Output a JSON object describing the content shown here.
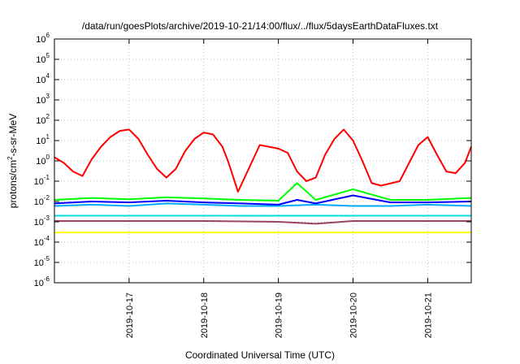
{
  "chart_data": {
    "type": "line",
    "title": "/data/run/goesPlots/archive/2019-10-21/14:00/flux/../flux/5daysEarthDataFluxes.txt",
    "xlabel": "Coordinated Universal Time (UTC)",
    "ylabel": "protons/cm²-s-sr-MeV",
    "ylabel_parts": [
      "protons/cm",
      "2",
      "-s-sr-MeV"
    ],
    "y_scale": "log",
    "ylim": [
      1e-06,
      1000000.0
    ],
    "y_ticks": [
      {
        "value": 1e-06,
        "base": "10",
        "exp": "-6"
      },
      {
        "value": 1e-05,
        "base": "10",
        "exp": "-5"
      },
      {
        "value": 0.0001,
        "base": "10",
        "exp": "-4"
      },
      {
        "value": 0.001,
        "base": "10",
        "exp": "-3"
      },
      {
        "value": 0.01,
        "base": "10",
        "exp": "-2"
      },
      {
        "value": 0.1,
        "base": "10",
        "exp": "-1"
      },
      {
        "value": 1,
        "base": "10",
        "exp": "0"
      },
      {
        "value": 10,
        "base": "10",
        "exp": "1"
      },
      {
        "value": 100,
        "base": "10",
        "exp": "2"
      },
      {
        "value": 1000,
        "base": "10",
        "exp": "3"
      },
      {
        "value": 10000,
        "base": "10",
        "exp": "4"
      },
      {
        "value": 100000,
        "base": "10",
        "exp": "5"
      },
      {
        "value": 1000000,
        "base": "10",
        "exp": "6"
      }
    ],
    "xlim": [
      "2019-10-16 00:00",
      "2019-10-21 14:00"
    ],
    "x_ticks": [
      "2019-10-17",
      "2019-10-18",
      "2019-10-19",
      "2019-10-20",
      "2019-10-21"
    ],
    "grid": true,
    "legend": "none",
    "series": [
      {
        "color": "#ff0000",
        "x": [
          "2019-10-16 00:00",
          "2019-10-16 03:00",
          "2019-10-16 06:00",
          "2019-10-16 09:00",
          "2019-10-16 12:00",
          "2019-10-16 15:00",
          "2019-10-16 18:00",
          "2019-10-16 21:00",
          "2019-10-17 00:00",
          "2019-10-17 03:00",
          "2019-10-17 06:00",
          "2019-10-17 09:00",
          "2019-10-17 12:00",
          "2019-10-17 15:00",
          "2019-10-17 18:00",
          "2019-10-17 21:00",
          "2019-10-18 00:00",
          "2019-10-18 03:00",
          "2019-10-18 06:00",
          "2019-10-18 08:00",
          "2019-10-18 11:00",
          "2019-10-18 18:00",
          "2019-10-19 00:00",
          "2019-10-19 03:00",
          "2019-10-19 06:00",
          "2019-10-19 09:00",
          "2019-10-19 12:00",
          "2019-10-19 15:00",
          "2019-10-19 18:00",
          "2019-10-19 21:00",
          "2019-10-20 00:00",
          "2019-10-20 03:00",
          "2019-10-20 06:00",
          "2019-10-20 09:00",
          "2019-10-20 15:00",
          "2019-10-20 21:00",
          "2019-10-21 00:00",
          "2019-10-21 03:00",
          "2019-10-21 06:00",
          "2019-10-21 09:00",
          "2019-10-21 12:00",
          "2019-10-21 14:00"
        ],
        "y": [
          1.5,
          0.8,
          0.3,
          0.18,
          1.2,
          5,
          15,
          30,
          35,
          12,
          2,
          0.4,
          0.15,
          0.4,
          3,
          12,
          25,
          20,
          5,
          0.8,
          0.03,
          6,
          4,
          2.5,
          0.3,
          0.1,
          0.15,
          2,
          12,
          35,
          10,
          1,
          0.08,
          0.06,
          0.1,
          6,
          15,
          2,
          0.3,
          0.25,
          0.8,
          5
        ]
      },
      {
        "color": "#00ff00",
        "x": [
          "2019-10-16 00:00",
          "2019-10-16 12:00",
          "2019-10-17 00:00",
          "2019-10-17 12:00",
          "2019-10-18 00:00",
          "2019-10-18 12:00",
          "2019-10-19 00:00",
          "2019-10-19 06:00",
          "2019-10-19 12:00",
          "2019-10-20 00:00",
          "2019-10-20 12:00",
          "2019-10-21 00:00",
          "2019-10-21 14:00"
        ],
        "y": [
          0.012,
          0.015,
          0.013,
          0.016,
          0.014,
          0.012,
          0.011,
          0.08,
          0.012,
          0.04,
          0.012,
          0.012,
          0.015
        ]
      },
      {
        "color": "#00aaff",
        "x": [
          "2019-10-16 00:00",
          "2019-10-16 12:00",
          "2019-10-17 00:00",
          "2019-10-17 12:00",
          "2019-10-18 00:00",
          "2019-10-18 12:00",
          "2019-10-19 00:00",
          "2019-10-19 12:00",
          "2019-10-20 00:00",
          "2019-10-20 12:00",
          "2019-10-21 00:00",
          "2019-10-21 14:00"
        ],
        "y": [
          0.006,
          0.007,
          0.006,
          0.008,
          0.007,
          0.006,
          0.006,
          0.007,
          0.006,
          0.006,
          0.007,
          0.006
        ]
      },
      {
        "color": "#0000ff",
        "x": [
          "2019-10-16 00:00",
          "2019-10-16 12:00",
          "2019-10-17 00:00",
          "2019-10-17 12:00",
          "2019-10-18 00:00",
          "2019-10-18 12:00",
          "2019-10-19 00:00",
          "2019-10-19 06:00",
          "2019-10-19 12:00",
          "2019-10-20 00:00",
          "2019-10-20 12:00",
          "2019-10-21 00:00",
          "2019-10-21 14:00"
        ],
        "y": [
          0.008,
          0.01,
          0.009,
          0.011,
          0.009,
          0.008,
          0.007,
          0.012,
          0.008,
          0.02,
          0.009,
          0.009,
          0.01
        ]
      },
      {
        "color": "#00dddd",
        "x": [
          "2019-10-16 00:00",
          "2019-10-17 00:00",
          "2019-10-18 00:00",
          "2019-10-19 00:00",
          "2019-10-20 00:00",
          "2019-10-21 00:00",
          "2019-10-21 14:00"
        ],
        "y": [
          0.002,
          0.002,
          0.002,
          0.002,
          0.002,
          0.002,
          0.002
        ]
      },
      {
        "color": "#994466",
        "x": [
          "2019-10-16 00:00",
          "2019-10-17 00:00",
          "2019-10-18 00:00",
          "2019-10-19 00:00",
          "2019-10-19 12:00",
          "2019-10-20 00:00",
          "2019-10-21 00:00",
          "2019-10-21 14:00"
        ],
        "y": [
          0.0011,
          0.0011,
          0.0011,
          0.001,
          0.0008,
          0.0011,
          0.0011,
          0.0011
        ]
      },
      {
        "color": "#ffff00",
        "x": [
          "2019-10-16 00:00",
          "2019-10-17 00:00",
          "2019-10-18 00:00",
          "2019-10-19 00:00",
          "2019-10-20 00:00",
          "2019-10-21 00:00",
          "2019-10-21 14:00"
        ],
        "y": [
          0.0003,
          0.0003,
          0.0003,
          0.0003,
          0.0003,
          0.0003,
          0.0003
        ]
      }
    ]
  }
}
